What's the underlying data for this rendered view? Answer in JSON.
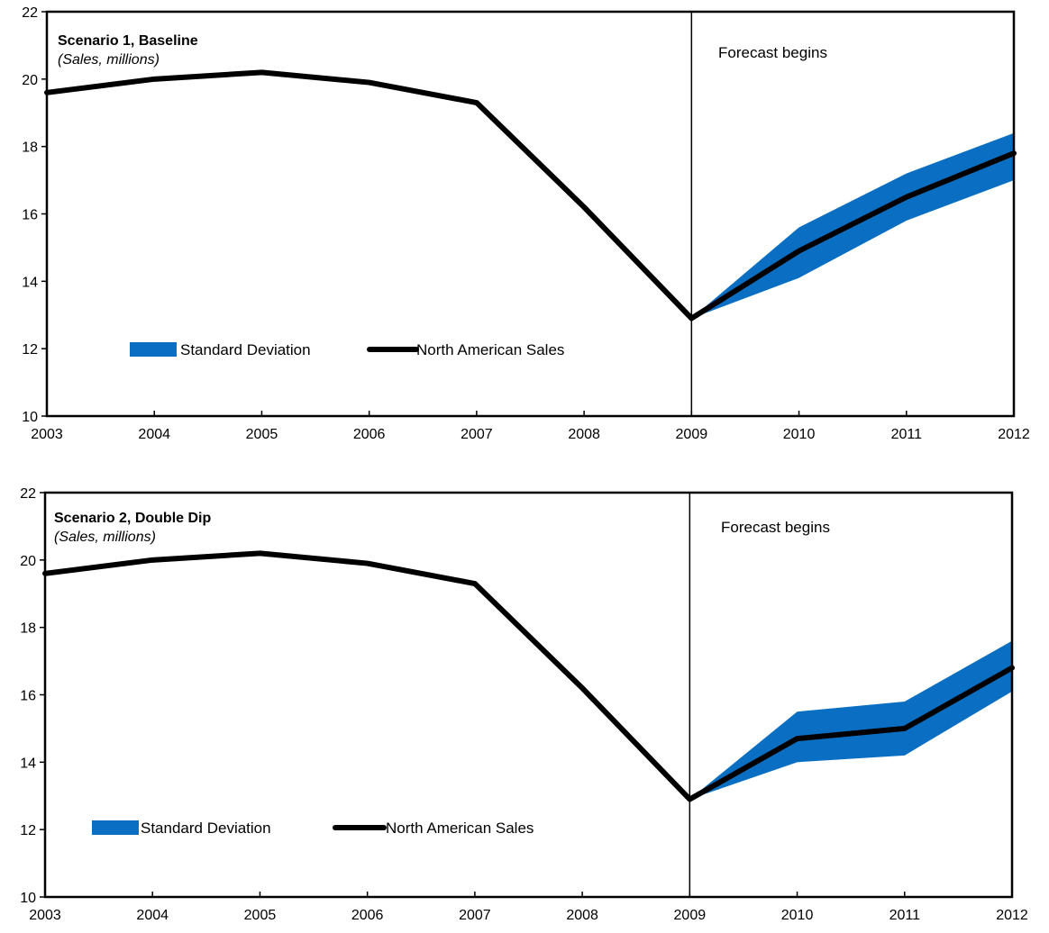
{
  "colors": {
    "band": "#0a6fc2",
    "line": "#000000",
    "axis": "#000000",
    "background": "#ffffff"
  },
  "chart_data": [
    {
      "type": "line",
      "title": "Scenario 1, Baseline",
      "subtitle": "(Sales, millions)",
      "annotation": "Forecast begins",
      "forecast_start": 2009,
      "xlim": [
        2003,
        2012
      ],
      "ylim": [
        10,
        22
      ],
      "x_ticks": [
        "2003",
        "2004",
        "2005",
        "2006",
        "2007",
        "2008",
        "2009",
        "2010",
        "2011",
        "2012"
      ],
      "y_ticks": [
        "10",
        "12",
        "14",
        "16",
        "18",
        "20",
        "22"
      ],
      "grid": false,
      "legend_position": "lower-left",
      "series": [
        {
          "name": "North American Sales",
          "type": "line",
          "color": "#000000",
          "x": [
            2003,
            2004,
            2005,
            2006,
            2007,
            2008,
            2009,
            2010,
            2011,
            2012
          ],
          "values": [
            19.6,
            20.0,
            20.2,
            19.9,
            19.3,
            16.2,
            12.9,
            14.9,
            16.5,
            17.8
          ]
        },
        {
          "name": "Standard Deviation",
          "type": "band",
          "color": "#0a6fc2",
          "x": [
            2009,
            2010,
            2011,
            2012
          ],
          "lower": [
            12.9,
            14.1,
            15.8,
            17.0
          ],
          "upper": [
            12.9,
            15.6,
            17.2,
            18.4
          ]
        }
      ]
    },
    {
      "type": "line",
      "title": "Scenario 2,  Double Dip",
      "subtitle": "(Sales, millions)",
      "annotation": "Forecast begins",
      "forecast_start": 2009,
      "xlim": [
        2003,
        2012
      ],
      "ylim": [
        10,
        22
      ],
      "x_ticks": [
        "2003",
        "2004",
        "2005",
        "2006",
        "2007",
        "2008",
        "2009",
        "2010",
        "2011",
        "2012"
      ],
      "y_ticks": [
        "10",
        "12",
        "14",
        "16",
        "18",
        "20",
        "22"
      ],
      "grid": false,
      "legend_position": "lower-left",
      "series": [
        {
          "name": "North American Sales",
          "type": "line",
          "color": "#000000",
          "x": [
            2003,
            2004,
            2005,
            2006,
            2007,
            2008,
            2009,
            2010,
            2011,
            2012
          ],
          "values": [
            19.6,
            20.0,
            20.2,
            19.9,
            19.3,
            16.2,
            12.9,
            14.7,
            15.0,
            16.8
          ]
        },
        {
          "name": "Standard Deviation",
          "type": "band",
          "color": "#0a6fc2",
          "x": [
            2009,
            2010,
            2011,
            2012
          ],
          "lower": [
            12.9,
            14.0,
            14.2,
            16.1
          ],
          "upper": [
            12.9,
            15.5,
            15.8,
            17.6
          ]
        }
      ]
    }
  ]
}
